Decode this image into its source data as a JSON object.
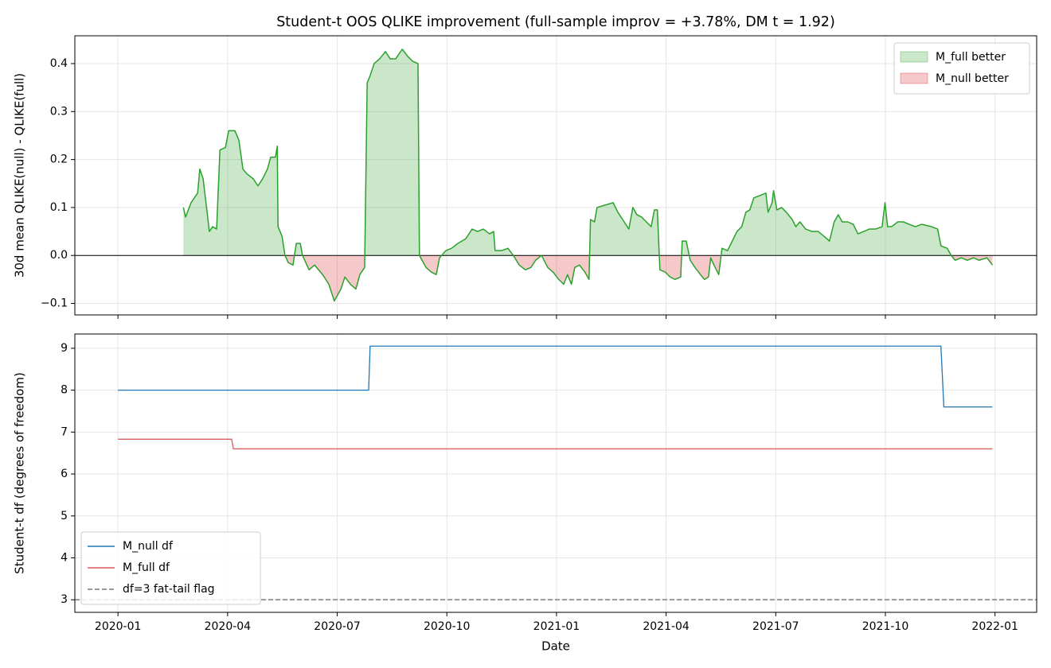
{
  "chart_data": [
    {
      "type": "area",
      "title": "Student-t OOS QLIKE improvement (full-sample improv = +3.78%, DM t = 1.92)",
      "y_label": "30d mean QLIKE(null) - QLIKE(full)",
      "sharex": true,
      "line_color": "#2ca02c",
      "hline": 0,
      "grid": true,
      "legend": "upper right",
      "fills": [
        {
          "name": "M_full better",
          "color": "#2ca02c",
          "side": "positive"
        },
        {
          "name": "M_null better",
          "color": "#d62728",
          "side": "negative"
        }
      ],
      "ylim": [
        -0.124,
        0.458
      ],
      "yticks": [
        {
          "value": -0.1,
          "label": "−0.1"
        },
        {
          "value": 0,
          "label": "0.0"
        },
        0.1,
        0.2,
        0.3,
        0.4
      ],
      "x": [
        1.79,
        1.85,
        2.0,
        2.18,
        2.24,
        2.33,
        2.44,
        2.5,
        2.59,
        2.7,
        2.79,
        2.94,
        3.03,
        3.2,
        3.31,
        3.42,
        3.53,
        3.7,
        3.83,
        3.96,
        4.09,
        4.18,
        4.31,
        4.36,
        4.38,
        4.49,
        4.57,
        4.66,
        4.79,
        4.88,
        4.99,
        5.05,
        5.23,
        5.38,
        5.6,
        5.77,
        5.92,
        6.1,
        6.21,
        6.36,
        6.51,
        6.62,
        6.75,
        6.82,
        6.9,
        7.01,
        7.16,
        7.32,
        7.45,
        7.6,
        7.78,
        7.93,
        8.06,
        8.21,
        8.25,
        8.32,
        8.43,
        8.58,
        8.71,
        8.8,
        8.97,
        9.13,
        9.3,
        9.52,
        9.69,
        9.84,
        10.0,
        10.17,
        10.28,
        10.32,
        10.5,
        10.67,
        10.82,
        10.98,
        11.15,
        11.3,
        11.43,
        11.59,
        11.76,
        11.91,
        12.06,
        12.2,
        12.3,
        12.41,
        12.5,
        12.63,
        12.78,
        12.89,
        12.93,
        13.04,
        13.11,
        13.33,
        13.55,
        13.68,
        13.81,
        13.98,
        14.09,
        14.2,
        14.33,
        14.46,
        14.59,
        14.68,
        14.76,
        14.83,
        14.98,
        15.11,
        15.24,
        15.4,
        15.44,
        15.55,
        15.66,
        15.79,
        15.94,
        16.05,
        16.16,
        16.22,
        16.31,
        16.44,
        16.53,
        16.68,
        16.81,
        16.94,
        17.07,
        17.18,
        17.29,
        17.4,
        17.57,
        17.73,
        17.79,
        17.9,
        17.94,
        18.03,
        18.16,
        18.29,
        18.45,
        18.55,
        18.66,
        18.82,
        18.99,
        19.16,
        19.32,
        19.47,
        19.6,
        19.71,
        19.82,
        19.97,
        20.12,
        20.25,
        20.41,
        20.56,
        20.73,
        20.91,
        20.99,
        21.06,
        21.17,
        21.34,
        21.49,
        21.65,
        21.82,
        21.99,
        22.26,
        22.43,
        22.52,
        22.69,
        22.8,
        22.91,
        23.08,
        23.24,
        23.41,
        23.56,
        23.78,
        23.93
      ],
      "values": [
        0.1,
        0.08,
        0.11,
        0.13,
        0.18,
        0.16,
        0.09,
        0.05,
        0.06,
        0.055,
        0.22,
        0.225,
        0.26,
        0.26,
        0.24,
        0.18,
        0.17,
        0.16,
        0.145,
        0.16,
        0.18,
        0.205,
        0.205,
        0.228,
        0.06,
        0.04,
        0.0,
        -0.015,
        -0.02,
        0.025,
        0.025,
        0.0,
        -0.03,
        -0.02,
        -0.04,
        -0.06,
        -0.095,
        -0.07,
        -0.045,
        -0.06,
        -0.07,
        -0.04,
        -0.025,
        0.36,
        0.375,
        0.4,
        0.41,
        0.425,
        0.41,
        0.41,
        0.43,
        0.415,
        0.405,
        0.4,
        0.0,
        -0.01,
        -0.025,
        -0.035,
        -0.04,
        -0.005,
        0.01,
        0.015,
        0.025,
        0.035,
        0.055,
        0.05,
        0.055,
        0.045,
        0.05,
        0.01,
        0.01,
        0.015,
        0.0,
        -0.02,
        -0.03,
        -0.025,
        -0.01,
        0.0,
        -0.025,
        -0.035,
        -0.05,
        -0.06,
        -0.04,
        -0.06,
        -0.025,
        -0.02,
        -0.035,
        -0.05,
        0.075,
        0.07,
        0.1,
        0.105,
        0.11,
        0.09,
        0.075,
        0.055,
        0.1,
        0.085,
        0.08,
        0.07,
        0.06,
        0.095,
        0.095,
        -0.03,
        -0.035,
        -0.045,
        -0.05,
        -0.045,
        0.03,
        0.03,
        -0.01,
        -0.025,
        -0.04,
        -0.05,
        -0.045,
        -0.005,
        -0.02,
        -0.04,
        0.015,
        0.01,
        0.03,
        0.05,
        0.06,
        0.09,
        0.095,
        0.12,
        0.125,
        0.13,
        0.09,
        0.11,
        0.135,
        0.095,
        0.1,
        0.09,
        0.075,
        0.06,
        0.07,
        0.055,
        0.05,
        0.05,
        0.04,
        0.03,
        0.07,
        0.085,
        0.07,
        0.07,
        0.065,
        0.045,
        0.05,
        0.055,
        0.055,
        0.06,
        0.11,
        0.06,
        0.06,
        0.07,
        0.07,
        0.065,
        0.06,
        0.065,
        0.06,
        0.055,
        0.02,
        0.015,
        0.0,
        -0.01,
        -0.005,
        -0.01,
        -0.005,
        -0.01,
        -0.005,
        -0.02
      ]
    },
    {
      "type": "line",
      "x_label": "Date",
      "y_label": "Student-t df (degrees of freedom)",
      "grid": true,
      "legend": "lower left",
      "xlim": [
        -1.18,
        25.14
      ],
      "xticks": [
        {
          "value": 0,
          "label": "2020-01"
        },
        {
          "value": 3,
          "label": "2020-04"
        },
        {
          "value": 6,
          "label": "2020-07"
        },
        {
          "value": 9,
          "label": "2020-10"
        },
        {
          "value": 12,
          "label": "2021-01"
        },
        {
          "value": 15,
          "label": "2021-04"
        },
        {
          "value": 18,
          "label": "2021-07"
        },
        {
          "value": 21,
          "label": "2021-10"
        },
        {
          "value": 24,
          "label": "2022-01"
        }
      ],
      "ylim": [
        2.7,
        9.34
      ],
      "yticks": [
        3,
        4,
        5,
        6,
        7,
        8,
        9
      ],
      "series": [
        {
          "name": "M_null df",
          "color": "#1f77b4",
          "x": [
            0,
            6.86,
            6.9,
            22.52,
            22.6,
            23.93
          ],
          "values": [
            8.0,
            8.0,
            9.05,
            9.05,
            7.6,
            7.6
          ]
        },
        {
          "name": "M_full df",
          "color": "#d95f5f",
          "x": [
            0,
            3.11,
            3.16,
            23.93
          ],
          "values": [
            6.83,
            6.83,
            6.6,
            6.6
          ]
        }
      ],
      "reference_lines": [
        {
          "name": "df=3 fat-tail flag",
          "color": "#999999",
          "value": 3,
          "dashed": true
        }
      ]
    }
  ]
}
